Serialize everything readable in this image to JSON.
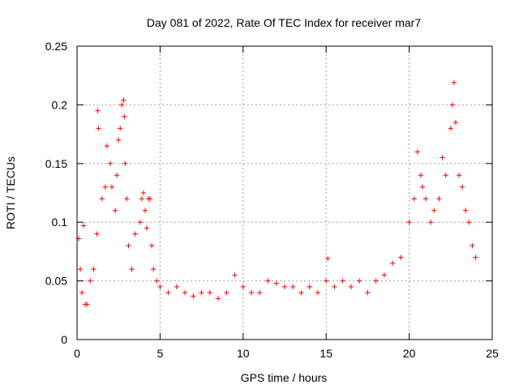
{
  "chart_data": {
    "type": "scatter",
    "title": "Day 081 of 2022, Rate Of TEC Index for receiver mar7",
    "xlabel": "GPS time / hours",
    "ylabel": "ROTI / TECUs",
    "xlim": [
      0,
      25
    ],
    "ylim": [
      0,
      0.25
    ],
    "xticks": [
      0,
      5,
      10,
      15,
      20,
      25
    ],
    "xtick_labels": [
      "0",
      "5",
      "10",
      "15",
      "20",
      "25"
    ],
    "yticks": [
      0,
      0.05,
      0.1,
      0.15,
      0.2,
      0.25
    ],
    "ytick_labels": [
      "0",
      "0.05",
      "0.1",
      "0.15",
      "0.2",
      "0.25"
    ],
    "grid": true,
    "marker": "+",
    "color": "#ff0000",
    "series": [
      {
        "x": [
          0.1,
          0.2,
          0.3,
          0.4,
          0.5,
          0.6,
          0.8,
          1.0,
          1.2,
          1.25,
          1.3,
          1.5,
          1.7,
          1.8,
          2.0,
          2.1,
          2.3,
          2.4,
          2.5,
          2.6,
          2.7,
          2.8,
          2.85,
          2.9,
          3.0,
          3.1,
          3.3,
          3.5,
          3.8,
          3.9,
          4.0,
          4.1,
          4.2,
          4.3,
          4.4,
          4.5,
          4.6,
          4.8,
          5.0,
          5.5,
          6.0,
          6.5,
          7.0,
          7.5,
          8.0,
          8.5,
          9.0,
          9.5,
          10.0,
          10.5,
          11.0,
          11.5,
          12.0,
          12.5,
          13.0,
          13.5,
          14.0,
          14.5,
          15.0,
          15.1,
          15.5,
          16.0,
          16.5,
          17.0,
          17.5,
          18.0,
          18.5,
          19.0,
          19.5,
          20.0,
          20.3,
          20.5,
          20.7,
          20.8,
          21.0,
          21.3,
          21.5,
          21.8,
          22.0,
          22.2,
          22.5,
          22.6,
          22.7,
          22.8,
          23.0,
          23.2,
          23.4,
          23.6,
          23.8,
          24.0
        ],
        "y": [
          0.086,
          0.06,
          0.04,
          0.097,
          0.03,
          0.03,
          0.05,
          0.06,
          0.09,
          0.195,
          0.18,
          0.12,
          0.13,
          0.165,
          0.15,
          0.13,
          0.11,
          0.14,
          0.17,
          0.18,
          0.2,
          0.204,
          0.19,
          0.15,
          0.12,
          0.08,
          0.06,
          0.09,
          0.1,
          0.12,
          0.125,
          0.11,
          0.095,
          0.12,
          0.12,
          0.08,
          0.06,
          0.05,
          0.045,
          0.04,
          0.045,
          0.04,
          0.037,
          0.04,
          0.04,
          0.035,
          0.04,
          0.055,
          0.045,
          0.04,
          0.04,
          0.05,
          0.048,
          0.045,
          0.045,
          0.04,
          0.045,
          0.04,
          0.05,
          0.069,
          0.045,
          0.05,
          0.045,
          0.05,
          0.04,
          0.05,
          0.055,
          0.065,
          0.07,
          0.1,
          0.12,
          0.16,
          0.14,
          0.13,
          0.12,
          0.1,
          0.11,
          0.12,
          0.155,
          0.14,
          0.18,
          0.2,
          0.219,
          0.185,
          0.14,
          0.13,
          0.11,
          0.1,
          0.08,
          0.07
        ]
      }
    ]
  }
}
